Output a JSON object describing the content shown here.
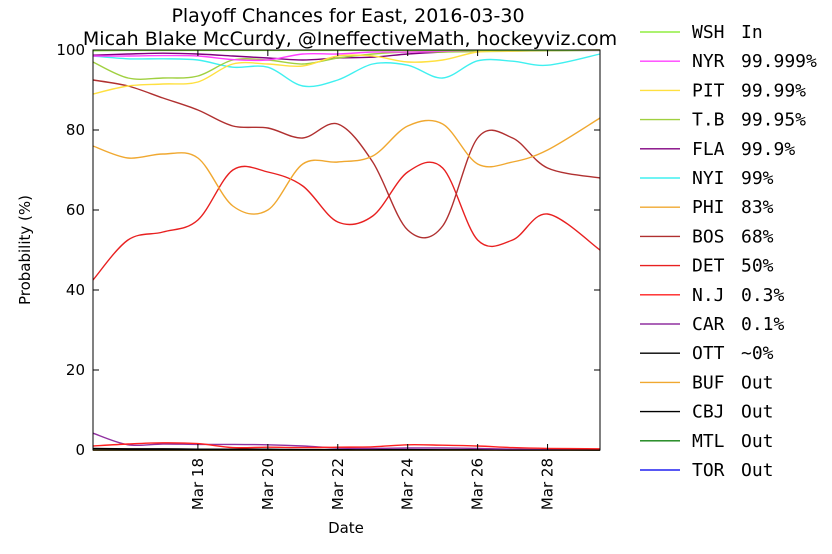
{
  "chart_data": {
    "type": "line",
    "title": "Playoff Chances for East, 2016-03-30",
    "subtitle": "Micah Blake McCurdy, @IneffectiveMath, hockeyviz.com",
    "xlabel": "Date",
    "ylabel": "Probability (%)",
    "ylim": [
      0,
      100
    ],
    "x_range_days": [
      15,
      29.5
    ],
    "x_ticks": [
      {
        "day": 18,
        "label": "Mar 18"
      },
      {
        "day": 20,
        "label": "Mar 20"
      },
      {
        "day": 22,
        "label": "Mar 22"
      },
      {
        "day": 24,
        "label": "Mar 24"
      },
      {
        "day": 26,
        "label": "Mar 26"
      },
      {
        "day": 28,
        "label": "Mar 28"
      }
    ],
    "y_ticks": [
      0,
      20,
      40,
      60,
      80,
      100
    ],
    "grid": false,
    "legend_position": "outside-right",
    "x": [
      15,
      16,
      17,
      18,
      19,
      20,
      21,
      22,
      23,
      24,
      25,
      26,
      27,
      28,
      29.5
    ],
    "series": [
      {
        "name": "WSH",
        "status": "In",
        "color": "#90ee40",
        "values": [
          99.8,
          99.9,
          99.9,
          99.9,
          99.9,
          99.9,
          99.9,
          99.9,
          99.9,
          99.9,
          99.9,
          99.9,
          99.9,
          99.9,
          100
        ]
      },
      {
        "name": "NYR",
        "status": "99.999%",
        "color": "#ff40ff",
        "values": [
          98.5,
          98.5,
          98.6,
          98.5,
          97.6,
          97.5,
          99.0,
          99.0,
          99.5,
          99.5,
          99.7,
          99.9,
          99.9,
          99.9,
          99.999
        ]
      },
      {
        "name": "PIT",
        "status": "99.99%",
        "color": "#ffe040",
        "values": [
          89.0,
          91.0,
          91.5,
          92.0,
          96.5,
          96.5,
          96.0,
          98.5,
          98.5,
          97.0,
          97.5,
          99.5,
          99.7,
          99.9,
          99.99
        ]
      },
      {
        "name": "T.B",
        "status": "99.95%",
        "color": "#a0d040",
        "values": [
          97.0,
          93.0,
          93.0,
          93.5,
          97.5,
          97.5,
          96.5,
          98.0,
          99.0,
          99.5,
          99.5,
          99.6,
          99.7,
          99.8,
          99.95
        ]
      },
      {
        "name": "FLA",
        "status": "99.9%",
        "color": "#800080",
        "values": [
          98.7,
          99.0,
          99.2,
          99.0,
          98.5,
          98.0,
          97.5,
          98.0,
          98.2,
          99.0,
          99.5,
          99.7,
          99.8,
          99.9,
          99.9
        ]
      },
      {
        "name": "NYI",
        "status": "99%",
        "color": "#40f0f0",
        "values": [
          98.5,
          97.8,
          97.8,
          97.5,
          95.7,
          95.7,
          91.0,
          92.5,
          96.5,
          96.2,
          93.0,
          97.3,
          97.2,
          96.2,
          99
        ]
      },
      {
        "name": "PHI",
        "status": "83%",
        "color": "#f0a830",
        "values": [
          76.0,
          73.0,
          74.0,
          73.0,
          61.0,
          60.0,
          71.5,
          72.0,
          73.5,
          81.0,
          81.5,
          71.5,
          72.0,
          75.0,
          83
        ]
      },
      {
        "name": "BOS",
        "status": "68%",
        "color": "#b03030",
        "values": [
          92.5,
          91.0,
          88.0,
          85.0,
          81.0,
          80.5,
          78.0,
          81.5,
          72.0,
          55.0,
          56.0,
          78.0,
          78.0,
          70.5,
          68
        ]
      },
      {
        "name": "DET",
        "status": "50%",
        "color": "#e82020",
        "values": [
          42.5,
          52.5,
          54.5,
          57.5,
          70.0,
          69.5,
          66.0,
          57.0,
          58.5,
          69.5,
          70.5,
          52.5,
          52.5,
          59.0,
          50
        ]
      },
      {
        "name": "N.J",
        "status": "0.3%",
        "color": "#ff2020",
        "values": [
          1.0,
          1.5,
          1.8,
          1.6,
          0.6,
          0.7,
          0.6,
          0.7,
          0.8,
          1.3,
          1.2,
          1.0,
          0.6,
          0.4,
          0.3
        ]
      },
      {
        "name": "CAR",
        "status": "0.1%",
        "color": "#9030a0",
        "values": [
          4.2,
          1.3,
          1.5,
          1.4,
          1.4,
          1.3,
          1.0,
          0.5,
          0.4,
          0.5,
          0.5,
          0.4,
          0.2,
          0.1,
          0.1
        ]
      },
      {
        "name": "OTT",
        "status": "~0%",
        "color": "#000000",
        "values": [
          0.4,
          0.3,
          0.3,
          0.2,
          0.2,
          0.2,
          0.1,
          0.1,
          0.1,
          0.1,
          0.05,
          0.05,
          0.02,
          0.01,
          0
        ]
      },
      {
        "name": "BUF",
        "status": "Out",
        "color": "#f0a830",
        "values": [
          0,
          0,
          0,
          0,
          0,
          0,
          0,
          0,
          0,
          0,
          0,
          0,
          0,
          0,
          0
        ]
      },
      {
        "name": "CBJ",
        "status": "Out",
        "color": "#000000",
        "values": [
          0,
          0,
          0,
          0,
          0,
          0,
          0,
          0,
          0,
          0,
          0,
          0,
          0,
          0,
          0
        ]
      },
      {
        "name": "MTL",
        "status": "Out",
        "color": "#108010",
        "values": [
          0,
          0,
          0,
          0,
          0,
          0,
          0,
          0,
          0,
          0,
          0,
          0,
          0,
          0,
          0
        ]
      },
      {
        "name": "TOR",
        "status": "Out",
        "color": "#2020f0",
        "values": [
          0,
          0,
          0,
          0,
          0,
          0,
          0,
          0,
          0,
          0,
          0,
          0,
          0,
          0,
          0
        ]
      }
    ]
  }
}
